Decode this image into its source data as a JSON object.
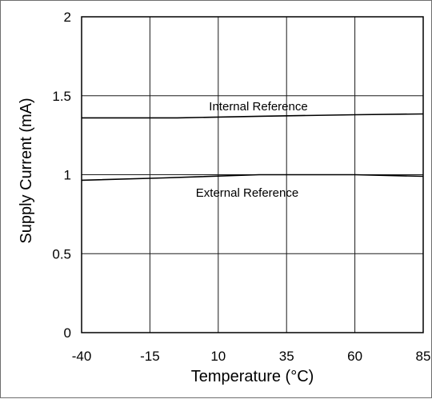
{
  "chart_data": {
    "type": "line",
    "xlabel": "Temperature (°C)",
    "ylabel": "Supply Current (mA)",
    "xlim": [
      -40,
      85
    ],
    "ylim": [
      0,
      2
    ],
    "x_ticks": [
      "-40",
      "-15",
      "10",
      "35",
      "60",
      "85"
    ],
    "y_ticks": [
      "0",
      "0.5",
      "1",
      "1.5",
      "2"
    ],
    "grid": true,
    "series": [
      {
        "name": "Internal Reference",
        "x": [
          -40,
          -5,
          25,
          60,
          85
        ],
        "y": [
          1.36,
          1.36,
          1.37,
          1.38,
          1.385
        ]
      },
      {
        "name": "External Reference",
        "x": [
          -40,
          -10,
          25,
          60,
          85
        ],
        "y": [
          0.965,
          0.98,
          1.0,
          1.0,
          0.99
        ]
      }
    ]
  }
}
